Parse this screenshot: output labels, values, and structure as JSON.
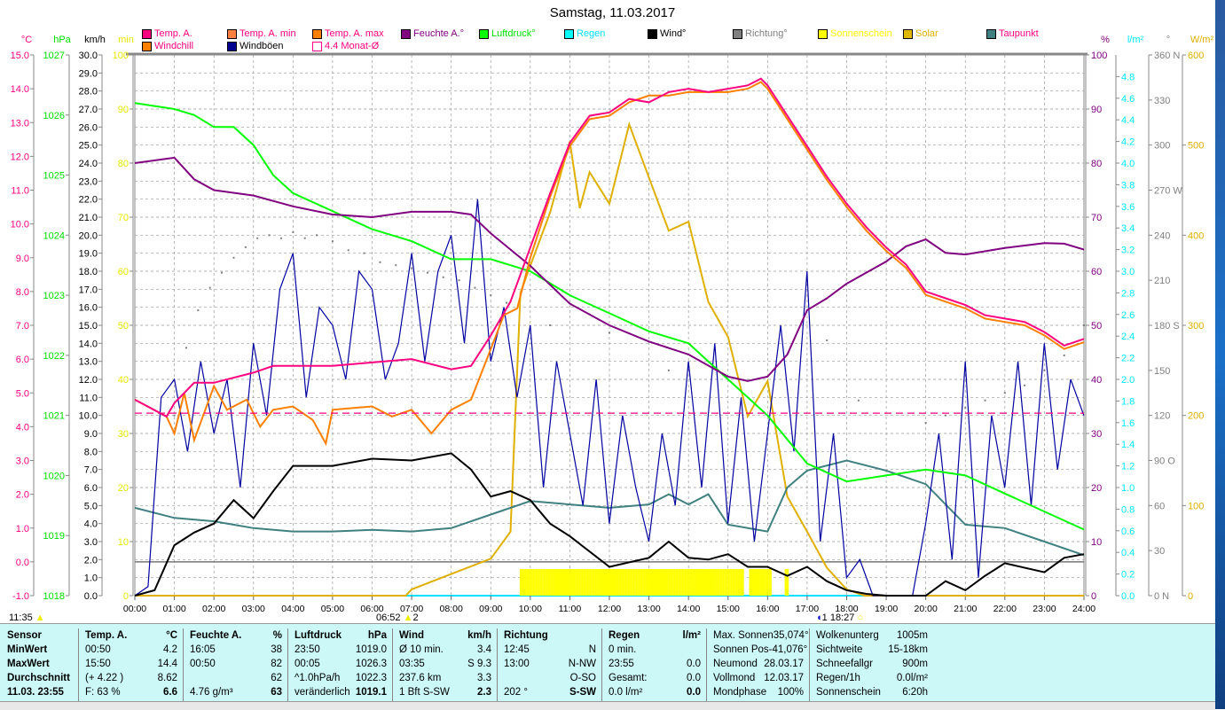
{
  "title": "Samstag, 11.03.2017",
  "legend": [
    {
      "label": "Temp. A.",
      "color": "#ff0080",
      "text": "#ff0080"
    },
    {
      "label": "Temp. A. min",
      "color": "#ff8040",
      "text": "#ff0080"
    },
    {
      "label": "Temp. A. max",
      "color": "#ff8000",
      "text": "#ff0080"
    },
    {
      "label": "Feuchte A.°",
      "color": "#800080",
      "text": "#800080"
    },
    {
      "label": "Luftdruck°",
      "color": "#00ff00",
      "text": "#00e000"
    },
    {
      "label": "Regen",
      "color": "#00ffff",
      "text": "#00e0ff"
    },
    {
      "label": "Wind°",
      "color": "#000000",
      "text": "#000000"
    },
    {
      "label": "Richtung°",
      "color": "#808080",
      "text": "#808080"
    },
    {
      "label": "Sonnenschein",
      "color": "#ffff00",
      "text": "#ffff00"
    },
    {
      "label": "Solar",
      "color": "#e0b800",
      "text": "#e0b000"
    },
    {
      "label": "Taupunkt",
      "color": "#408080",
      "text": "#ff0080"
    },
    {
      "label": "Windchill",
      "color": "#ff8000",
      "text": "#ff0080"
    },
    {
      "label": "Windböen",
      "color": "#000090",
      "text": "#000000"
    },
    {
      "label": "4.4 Monat-Ø",
      "color": "#ffffff",
      "text": "#ff0080"
    }
  ],
  "markers": {
    "sunset_prev": "11:35",
    "sunrise": "06:52",
    "sunrise_n": "2",
    "sunset_n": "1",
    "sunset": "18:27"
  },
  "chart_data": {
    "type": "line",
    "title": "Samstag, 11.03.2017",
    "x_ticks": [
      "00:00",
      "01:00",
      "02:00",
      "03:00",
      "04:00",
      "05:00",
      "06:00",
      "07:00",
      "08:00",
      "09:00",
      "10:00",
      "11:00",
      "12:00",
      "13:00",
      "14:00",
      "15:00",
      "16:00",
      "17:00",
      "18:00",
      "19:00",
      "20:00",
      "21:00",
      "22:00",
      "23:00",
      "24:00"
    ],
    "xlim": [
      0,
      24
    ],
    "axes": [
      {
        "unit": "°C",
        "color": "#ff0080",
        "min": -1,
        "max": 15,
        "step": 1,
        "dec": 1,
        "side": "left"
      },
      {
        "unit": "hPa",
        "color": "#00e000",
        "min": 1018,
        "max": 1027,
        "step": 1,
        "dec": 0,
        "side": "left"
      },
      {
        "unit": "km/h",
        "color": "#000000",
        "min": 0,
        "max": 30,
        "step": 1,
        "dec": 1,
        "side": "left"
      },
      {
        "unit": "min",
        "color": "#e8e800",
        "min": 0,
        "max": 100,
        "step": 10,
        "dec": 0,
        "side": "left"
      },
      {
        "unit": "%",
        "color": "#800080",
        "min": 0,
        "max": 100,
        "step": 10,
        "dec": 0,
        "side": "right"
      },
      {
        "unit": "l/m²",
        "color": "#00e8ff",
        "min": 0,
        "max": 5,
        "step": 0.2,
        "dec": 1,
        "side": "right",
        "maxLabel": 4.8
      },
      {
        "unit": "°",
        "color": "#808080",
        "min": 0,
        "max": 360,
        "step": 30,
        "dec": 0,
        "side": "right",
        "dirs": {
          "0": "N",
          "90": "O",
          "180": "S",
          "270": "W",
          "360": "N"
        }
      },
      {
        "unit": "W/m²",
        "color": "#e0b000",
        "min": 0,
        "max": 600,
        "step": 100,
        "dec": 0,
        "side": "right"
      }
    ],
    "reference_line": {
      "name": "4.4 Monat-Ø",
      "value": 4.4,
      "axis": "°C"
    },
    "series": [
      {
        "name": "Sonnenschein",
        "axis": "min",
        "color": "#ffff00",
        "type": "bars",
        "intervals": [
          [
            9.75,
            15.4
          ],
          [
            15.55,
            16.1
          ],
          [
            16.45,
            16.55
          ]
        ]
      },
      {
        "name": "Richtung",
        "axis": "°",
        "color": "#808080",
        "type": "dots",
        "x": [
          1,
          1.3,
          1.6,
          1.9,
          2.2,
          2.5,
          2.8,
          3.1,
          3.4,
          3.7,
          4,
          4.3,
          4.6,
          5,
          5.4,
          5.8,
          6.2,
          6.6,
          7,
          7.4,
          7.8,
          8.2,
          8.6,
          9,
          9.4,
          10.5,
          12,
          13.5,
          17.5,
          18.3,
          20,
          20.5,
          21,
          21.5,
          22,
          22.5,
          23,
          23.5,
          24
        ],
        "y": [
          120,
          165,
          190,
          205,
          215,
          225,
          232,
          238,
          240,
          238,
          242,
          238,
          240,
          236,
          230,
          228,
          222,
          220,
          218,
          215,
          212,
          210,
          205,
          200,
          195,
          180,
          175,
          150,
          170,
          130,
          115,
          120,
          125,
          130,
          135,
          140,
          150,
          160,
          180
        ]
      },
      {
        "name": "Solar",
        "axis": "W/m²",
        "color": "#e0b000",
        "x": [
          0,
          6.85,
          7,
          8,
          9,
          9.5,
          9.75,
          10,
          10.5,
          11,
          11.25,
          11.5,
          12,
          12.5,
          13,
          13.5,
          14,
          14.5,
          15,
          15.5,
          16,
          16.5,
          17,
          17.5,
          18,
          18.45,
          24
        ],
        "y": [
          0,
          0,
          7,
          24,
          41,
          71,
          336,
          366,
          425,
          504,
          430,
          470,
          435,
          523,
          464,
          405,
          415,
          326,
          287,
          199,
          238,
          110,
          71,
          31,
          7,
          0,
          0
        ]
      },
      {
        "name": "Taupunkt",
        "axis": "°C",
        "color": "#408080",
        "x": [
          0,
          1,
          2,
          3,
          4,
          5,
          6,
          7,
          8,
          9,
          10,
          11,
          12,
          13,
          13.5,
          14,
          14.5,
          15,
          16,
          16.5,
          17,
          18,
          19,
          20,
          21,
          22,
          23,
          24
        ],
        "y": [
          1.6,
          1.3,
          1.2,
          1.0,
          0.9,
          0.9,
          0.95,
          0.9,
          1.0,
          1.4,
          1.8,
          1.7,
          1.6,
          1.7,
          2.0,
          1.7,
          2.0,
          1.1,
          0.9,
          2.2,
          2.7,
          3.0,
          2.7,
          2.3,
          1.1,
          1.0,
          0.6,
          0.2
        ]
      },
      {
        "name": "Windböen",
        "axis": "km/h",
        "color": "#0000a0",
        "x_step": 0.3333,
        "y": [
          0,
          0.5,
          11,
          12,
          8,
          13,
          9,
          12,
          6,
          14,
          10,
          17,
          19,
          11,
          16,
          15,
          12,
          18,
          17,
          12,
          14,
          19,
          13,
          18,
          20,
          14,
          22,
          13,
          16,
          11,
          15,
          6,
          13,
          9,
          5,
          12,
          4,
          10,
          6,
          3,
          9,
          5,
          13,
          6,
          14,
          4,
          11,
          3,
          9,
          15,
          8,
          18,
          3,
          9,
          1,
          2,
          0,
          0,
          0,
          0,
          4,
          9,
          2,
          13,
          1,
          10,
          6,
          13,
          5,
          14,
          7,
          12,
          10
        ]
      },
      {
        "name": "Wind",
        "axis": "km/h",
        "color": "#000000",
        "x": [
          0,
          0.5,
          1,
          1.5,
          2,
          2.5,
          3,
          3.5,
          4,
          5,
          6,
          7,
          8,
          8.5,
          9,
          9.5,
          10,
          10.5,
          11,
          12,
          13,
          13.5,
          14,
          14.5,
          15,
          15.5,
          16,
          16.5,
          17,
          17.5,
          18,
          18.5,
          19,
          20,
          20.5,
          21,
          21.5,
          22,
          23,
          23.5,
          24
        ],
        "y": [
          0,
          0.3,
          2.8,
          3.5,
          4.0,
          5.3,
          4.3,
          5.8,
          7.2,
          7.2,
          7.6,
          7.5,
          7.9,
          7.0,
          5.5,
          5.8,
          5.3,
          4.0,
          3.3,
          1.6,
          2.1,
          3.0,
          2.1,
          2.0,
          2.3,
          1.6,
          1.6,
          1.1,
          1.6,
          0.8,
          0.3,
          0.1,
          0,
          0,
          0.8,
          0.3,
          1.1,
          1.8,
          1.3,
          2.1,
          2.3
        ]
      },
      {
        "name": "Luftdruck",
        "axis": "hPa",
        "color": "#00ff00",
        "x": [
          0,
          1,
          1.5,
          2,
          2.5,
          3,
          3.5,
          4,
          5,
          6,
          7,
          8,
          9,
          10,
          11,
          12,
          13,
          14,
          14.5,
          15,
          16,
          17,
          18,
          19,
          20,
          21,
          22,
          23,
          24
        ],
        "y": [
          1026.2,
          1026.1,
          1026.0,
          1025.8,
          1025.8,
          1025.5,
          1025.0,
          1024.7,
          1024.4,
          1024.1,
          1023.9,
          1023.6,
          1023.6,
          1023.4,
          1023.0,
          1022.7,
          1022.4,
          1022.2,
          1021.9,
          1021.6,
          1021.0,
          1020.2,
          1019.9,
          1020.0,
          1020.1,
          1020.0,
          1019.7,
          1019.4,
          1019.1
        ]
      },
      {
        "name": "Feuchte A.",
        "axis": "%",
        "color": "#800080",
        "x": [
          0,
          1,
          1.5,
          2,
          3,
          4,
          5,
          6,
          7,
          8,
          8.5,
          9,
          10,
          11,
          12,
          13,
          14,
          15,
          15.5,
          16,
          16.5,
          17,
          17.5,
          18,
          19,
          19.5,
          20,
          20.5,
          21,
          22,
          23,
          23.5,
          24
        ],
        "y": [
          80,
          81,
          77,
          75,
          74,
          72,
          70.5,
          70,
          71,
          71,
          70.5,
          67,
          61,
          54,
          50,
          47,
          44.6,
          40.5,
          39.7,
          40.5,
          44.6,
          52.8,
          55,
          57.7,
          61.8,
          64.6,
          65.9,
          63.4,
          63.1,
          64.3,
          65.2,
          65.1,
          64
        ]
      },
      {
        "name": "Temp. A. max",
        "axis": "°C",
        "color": "#ff8000",
        "x": [
          0,
          0.8,
          1,
          1.25,
          1.5,
          2,
          2.33,
          2.83,
          3.17,
          3.5,
          4,
          4.5,
          4.83,
          5,
          6,
          6.5,
          7,
          7.5,
          8,
          8.5,
          9,
          9.33,
          9.67,
          10,
          10.5,
          11,
          11.5,
          12,
          12.5,
          13,
          13.5,
          14,
          14.5,
          15,
          15.5,
          15.83,
          16,
          16.5,
          17,
          17.5,
          18,
          18.5,
          19,
          19.5,
          20,
          20.5,
          21,
          21.5,
          22,
          22.5,
          23,
          23.5,
          24
        ],
        "y": [
          4.8,
          4.3,
          3.8,
          5.0,
          3.6,
          5.2,
          4.5,
          4.8,
          4.0,
          4.5,
          4.6,
          4.2,
          3.5,
          4.5,
          4.6,
          4.3,
          4.5,
          3.8,
          4.5,
          4.8,
          6.3,
          7.3,
          7.5,
          9.0,
          10.8,
          12.3,
          13.1,
          13.2,
          13.6,
          13.8,
          13.8,
          13.9,
          13.9,
          13.9,
          14.0,
          14.2,
          14.0,
          13.1,
          12.2,
          11.3,
          10.5,
          9.8,
          9.2,
          8.7,
          7.9,
          7.7,
          7.5,
          7.2,
          7.1,
          7.0,
          6.7,
          6.3,
          6.5
        ]
      },
      {
        "name": "Temp. A.",
        "axis": "°C",
        "color": "#ff0080",
        "x": [
          0,
          0.8,
          1,
          1.5,
          2,
          3,
          3.5,
          4,
          5,
          6,
          7,
          8,
          8.5,
          9,
          9.5,
          10,
          10.5,
          11,
          11.5,
          12,
          12.5,
          13,
          13.5,
          14,
          14.5,
          15,
          15.5,
          15.83,
          16,
          16.5,
          17,
          17.5,
          18,
          18.5,
          19,
          19.5,
          20,
          20.5,
          21,
          21.5,
          22,
          22.5,
          23,
          23.5,
          24
        ],
        "y": [
          4.8,
          4.3,
          4.7,
          5.3,
          5.3,
          5.6,
          5.8,
          5.8,
          5.8,
          5.9,
          6.0,
          5.7,
          5.8,
          6.7,
          7.7,
          9.3,
          10.9,
          12.4,
          13.2,
          13.3,
          13.7,
          13.6,
          13.9,
          14.0,
          13.9,
          14.0,
          14.1,
          14.3,
          14.1,
          13.2,
          12.3,
          11.4,
          10.6,
          9.9,
          9.3,
          8.8,
          8.0,
          7.8,
          7.6,
          7.3,
          7.2,
          7.1,
          6.8,
          6.4,
          6.6
        ]
      }
    ]
  },
  "table": {
    "cols": [
      {
        "rows": [
          [
            "Sensor",
            ""
          ],
          [
            "MinWert",
            ""
          ],
          [
            "MaxWert",
            ""
          ],
          [
            "Durchschnitt",
            ""
          ],
          [
            "11.03. 23:55",
            ""
          ]
        ],
        "bold": [
          0,
          1,
          2,
          3,
          4
        ]
      },
      {
        "rows": [
          [
            "Temp. A.",
            "°C"
          ],
          [
            "00:50",
            "4.2"
          ],
          [
            "15:50",
            "14.4"
          ],
          [
            "(+ 4.22 )",
            "8.62"
          ],
          [
            "F: 63 %",
            "6.6"
          ]
        ],
        "bold": [
          0
        ]
      },
      {
        "rows": [
          [
            "Feuchte A.",
            "%"
          ],
          [
            "16:05",
            "38"
          ],
          [
            "00:50",
            "82"
          ],
          [
            "",
            "62"
          ],
          [
            "4.76 g/m³",
            "63"
          ]
        ],
        "bold": [
          0
        ]
      },
      {
        "rows": [
          [
            "Luftdruck",
            "hPa"
          ],
          [
            "23:50",
            "1019.0"
          ],
          [
            "00:05",
            "1026.3"
          ],
          [
            "^1.0hPa/h",
            "1022.3"
          ],
          [
            "veränderlich",
            "1019.1"
          ]
        ],
        "bold": [
          0
        ]
      },
      {
        "rows": [
          [
            "Wind",
            "km/h"
          ],
          [
            "Ø 10 min.",
            "3.4"
          ],
          [
            "03:35",
            "S 9.3"
          ],
          [
            "237.6 km",
            "3.3"
          ],
          [
            "1 Bft S-SW",
            "2.3"
          ]
        ],
        "bold": [
          0
        ]
      },
      {
        "rows": [
          [
            "Richtung",
            ""
          ],
          [
            "12:45",
            "N"
          ],
          [
            "13:00",
            "N-NW"
          ],
          [
            "",
            "O-SO"
          ],
          [
            "202 °",
            "S-SW"
          ]
        ],
        "bold": [
          0
        ]
      },
      {
        "rows": [
          [
            "Regen",
            "l/m²"
          ],
          [
            "0 min.",
            ""
          ],
          [
            "23:55",
            "0.0"
          ],
          [
            "Gesamt:",
            "0.0"
          ],
          [
            "0.0 l/m²",
            "0.0"
          ]
        ],
        "bold": [
          0
        ]
      },
      {
        "rows": [
          [
            "Max. Sonnen",
            "35,074°"
          ],
          [
            "Sonnen Pos",
            "-41,076°"
          ],
          [
            "Neumond",
            "28.03.17"
          ],
          [
            "Vollmond",
            "12.03.17"
          ],
          [
            "Mondphase",
            "100%"
          ]
        ],
        "bold": []
      },
      {
        "rows": [
          [
            "Wolkenunterg",
            "1005m"
          ],
          [
            "Sichtweite",
            "15-18km"
          ],
          [
            "Schneefallgr",
            "900m"
          ],
          [
            "Regen/1h",
            "0.0l/m²"
          ],
          [
            "Sonnenschein",
            "6:20h"
          ]
        ],
        "bold": []
      }
    ]
  }
}
